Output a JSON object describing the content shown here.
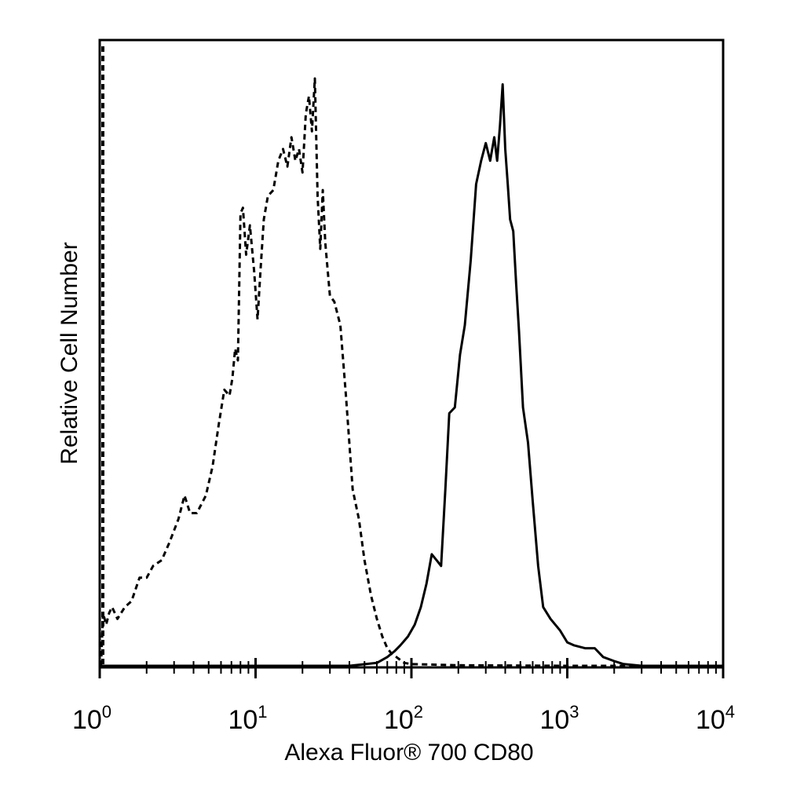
{
  "chart_data": {
    "type": "line",
    "xlabel": "Alexa Fluor® 700 CD80",
    "ylabel": "Relative Cell Number",
    "x_scale": "log",
    "xlim": [
      1,
      10000
    ],
    "ylim": [
      0,
      100
    ],
    "grid": false,
    "legend": "none",
    "x_ticks": [
      {
        "value": 1,
        "base": "10",
        "exp": "0"
      },
      {
        "value": 10,
        "base": "10",
        "exp": "1"
      },
      {
        "value": 100,
        "base": "10",
        "exp": "2"
      },
      {
        "value": 1000,
        "base": "10",
        "exp": "3"
      },
      {
        "value": 10000,
        "base": "10",
        "exp": "4"
      }
    ],
    "series": [
      {
        "style": "dashed",
        "color": "#000000",
        "x": [
          1.02,
          1.05,
          1.1,
          1.15,
          1.2,
          1.3,
          1.45,
          1.6,
          1.8,
          2.0,
          2.2,
          2.5,
          2.8,
          3.2,
          3.5,
          3.8,
          4.2,
          4.8,
          5.3,
          5.8,
          6.3,
          6.8,
          7.1,
          7.4,
          7.7,
          8.0,
          8.3,
          8.7,
          9.2,
          9.8,
          10.3,
          10.8,
          11.3,
          12.0,
          13.0,
          14.0,
          15.0,
          16.0,
          17.0,
          18.0,
          19.0,
          20.0,
          21.0,
          22.0,
          23.0,
          24.0,
          25.0,
          26.0,
          27.0,
          28.0,
          30.0,
          32.0,
          35.0,
          38.0,
          42.0,
          46.0,
          50.0,
          55.0,
          60.0,
          65.0,
          70.0,
          75.0,
          80.0,
          90.0,
          100.0,
          200.0,
          1000.0,
          10000.0
        ],
        "y": [
          0,
          9,
          7,
          9,
          10,
          8,
          10,
          11,
          15,
          15,
          17,
          18,
          21,
          25,
          29,
          26,
          26,
          29,
          34,
          41,
          47,
          46,
          49,
          54,
          52,
          77,
          78,
          70,
          75,
          67,
          59,
          68,
          76,
          80,
          81,
          86,
          88,
          85,
          90,
          86,
          88,
          84,
          94,
          97,
          91,
          100,
          80,
          71,
          81,
          72,
          63,
          62,
          58,
          46,
          30,
          25,
          18,
          12,
          8,
          5,
          3,
          2,
          1.5,
          0.5,
          0.3,
          0.1,
          0,
          0
        ]
      },
      {
        "style": "solid",
        "color": "#000000",
        "x": [
          1.0,
          40.0,
          60.0,
          70.0,
          78.0,
          85.0,
          95.0,
          105.0,
          115.0,
          125.0,
          135.0,
          145.0,
          155.0,
          165.0,
          175.0,
          190.0,
          205.0,
          220.0,
          240.0,
          260.0,
          280.0,
          300.0,
          320.0,
          340.0,
          355.0,
          370.0,
          385.0,
          400.0,
          415.0,
          430.0,
          450.0,
          470.0,
          490.0,
          520.0,
          560.0,
          600.0,
          650.0,
          700.0,
          780.0,
          900.0,
          1000.0,
          1100.0,
          1300.0,
          1500.0,
          1700.0,
          2000.0,
          2300.0,
          3000.0,
          10000.0
        ],
        "y": [
          0,
          0,
          0.5,
          1.5,
          2.5,
          3.5,
          5,
          7,
          10,
          14,
          19,
          18,
          17,
          30,
          43,
          44,
          53,
          58,
          69,
          82,
          86,
          89,
          86,
          90,
          86,
          92,
          99,
          88,
          82,
          76,
          74,
          65,
          57,
          44,
          38,
          28,
          17,
          10,
          8,
          6,
          4,
          3.5,
          3,
          3,
          1.5,
          0.8,
          0.3,
          0,
          0
        ]
      }
    ]
  }
}
